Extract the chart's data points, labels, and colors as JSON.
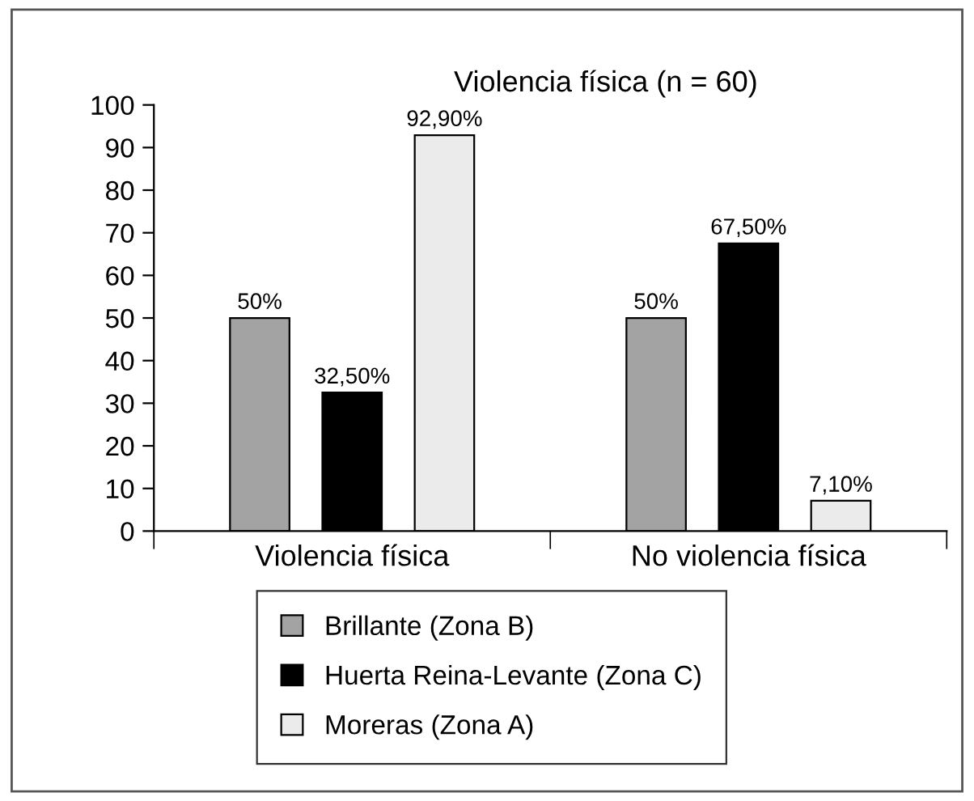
{
  "chart_data": {
    "type": "bar",
    "title": "Violencia física (n = 60)",
    "categories": [
      "Violencia física",
      "No violencia física"
    ],
    "series": [
      {
        "name": "Brillante (Zona B)",
        "color": "#a3a3a3",
        "values": [
          50,
          50
        ],
        "value_labels": [
          "50%",
          "50%"
        ]
      },
      {
        "name": "Huerta Reina-Levante (Zona C)",
        "color": "#000000",
        "values": [
          32.5,
          67.5
        ],
        "value_labels": [
          "32,50%",
          "67,50%"
        ]
      },
      {
        "name": "Moreras (Zona A)",
        "color": "#ebebeb",
        "values": [
          92.9,
          7.1
        ],
        "value_labels": [
          "92,90%",
          "7,10%"
        ]
      }
    ],
    "ylim": [
      0,
      100
    ],
    "yticks": [
      0,
      10,
      20,
      30,
      40,
      50,
      60,
      70,
      80,
      90,
      100
    ],
    "grid": false,
    "legend": "bottom"
  }
}
